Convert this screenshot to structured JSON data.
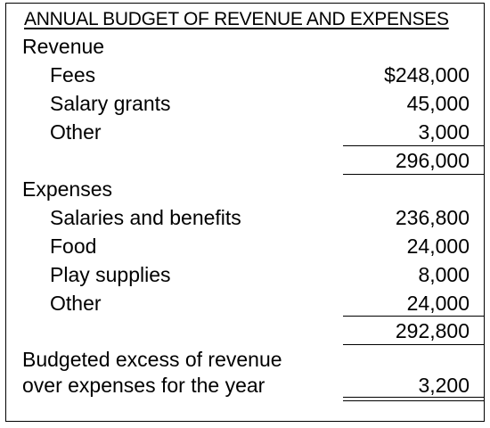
{
  "title": "ANNUAL BUDGET OF REVENUE AND EXPENSES",
  "revenue": {
    "heading": "Revenue",
    "items": [
      {
        "label": "Fees",
        "amount": "$248,000"
      },
      {
        "label": "Salary grants",
        "amount": "45,000"
      },
      {
        "label": "Other",
        "amount": "3,000"
      }
    ],
    "total": "296,000"
  },
  "expenses": {
    "heading": "Expenses",
    "items": [
      {
        "label": "Salaries and benefits",
        "amount": "236,800"
      },
      {
        "label": "Food",
        "amount": "24,000"
      },
      {
        "label": "Play supplies",
        "amount": "8,000"
      },
      {
        "label": "Other",
        "amount": "24,000"
      }
    ],
    "total": "292,800"
  },
  "excess": {
    "label_line1": "Budgeted excess of revenue",
    "label_line2": "over expenses for the year",
    "amount": "3,200"
  }
}
